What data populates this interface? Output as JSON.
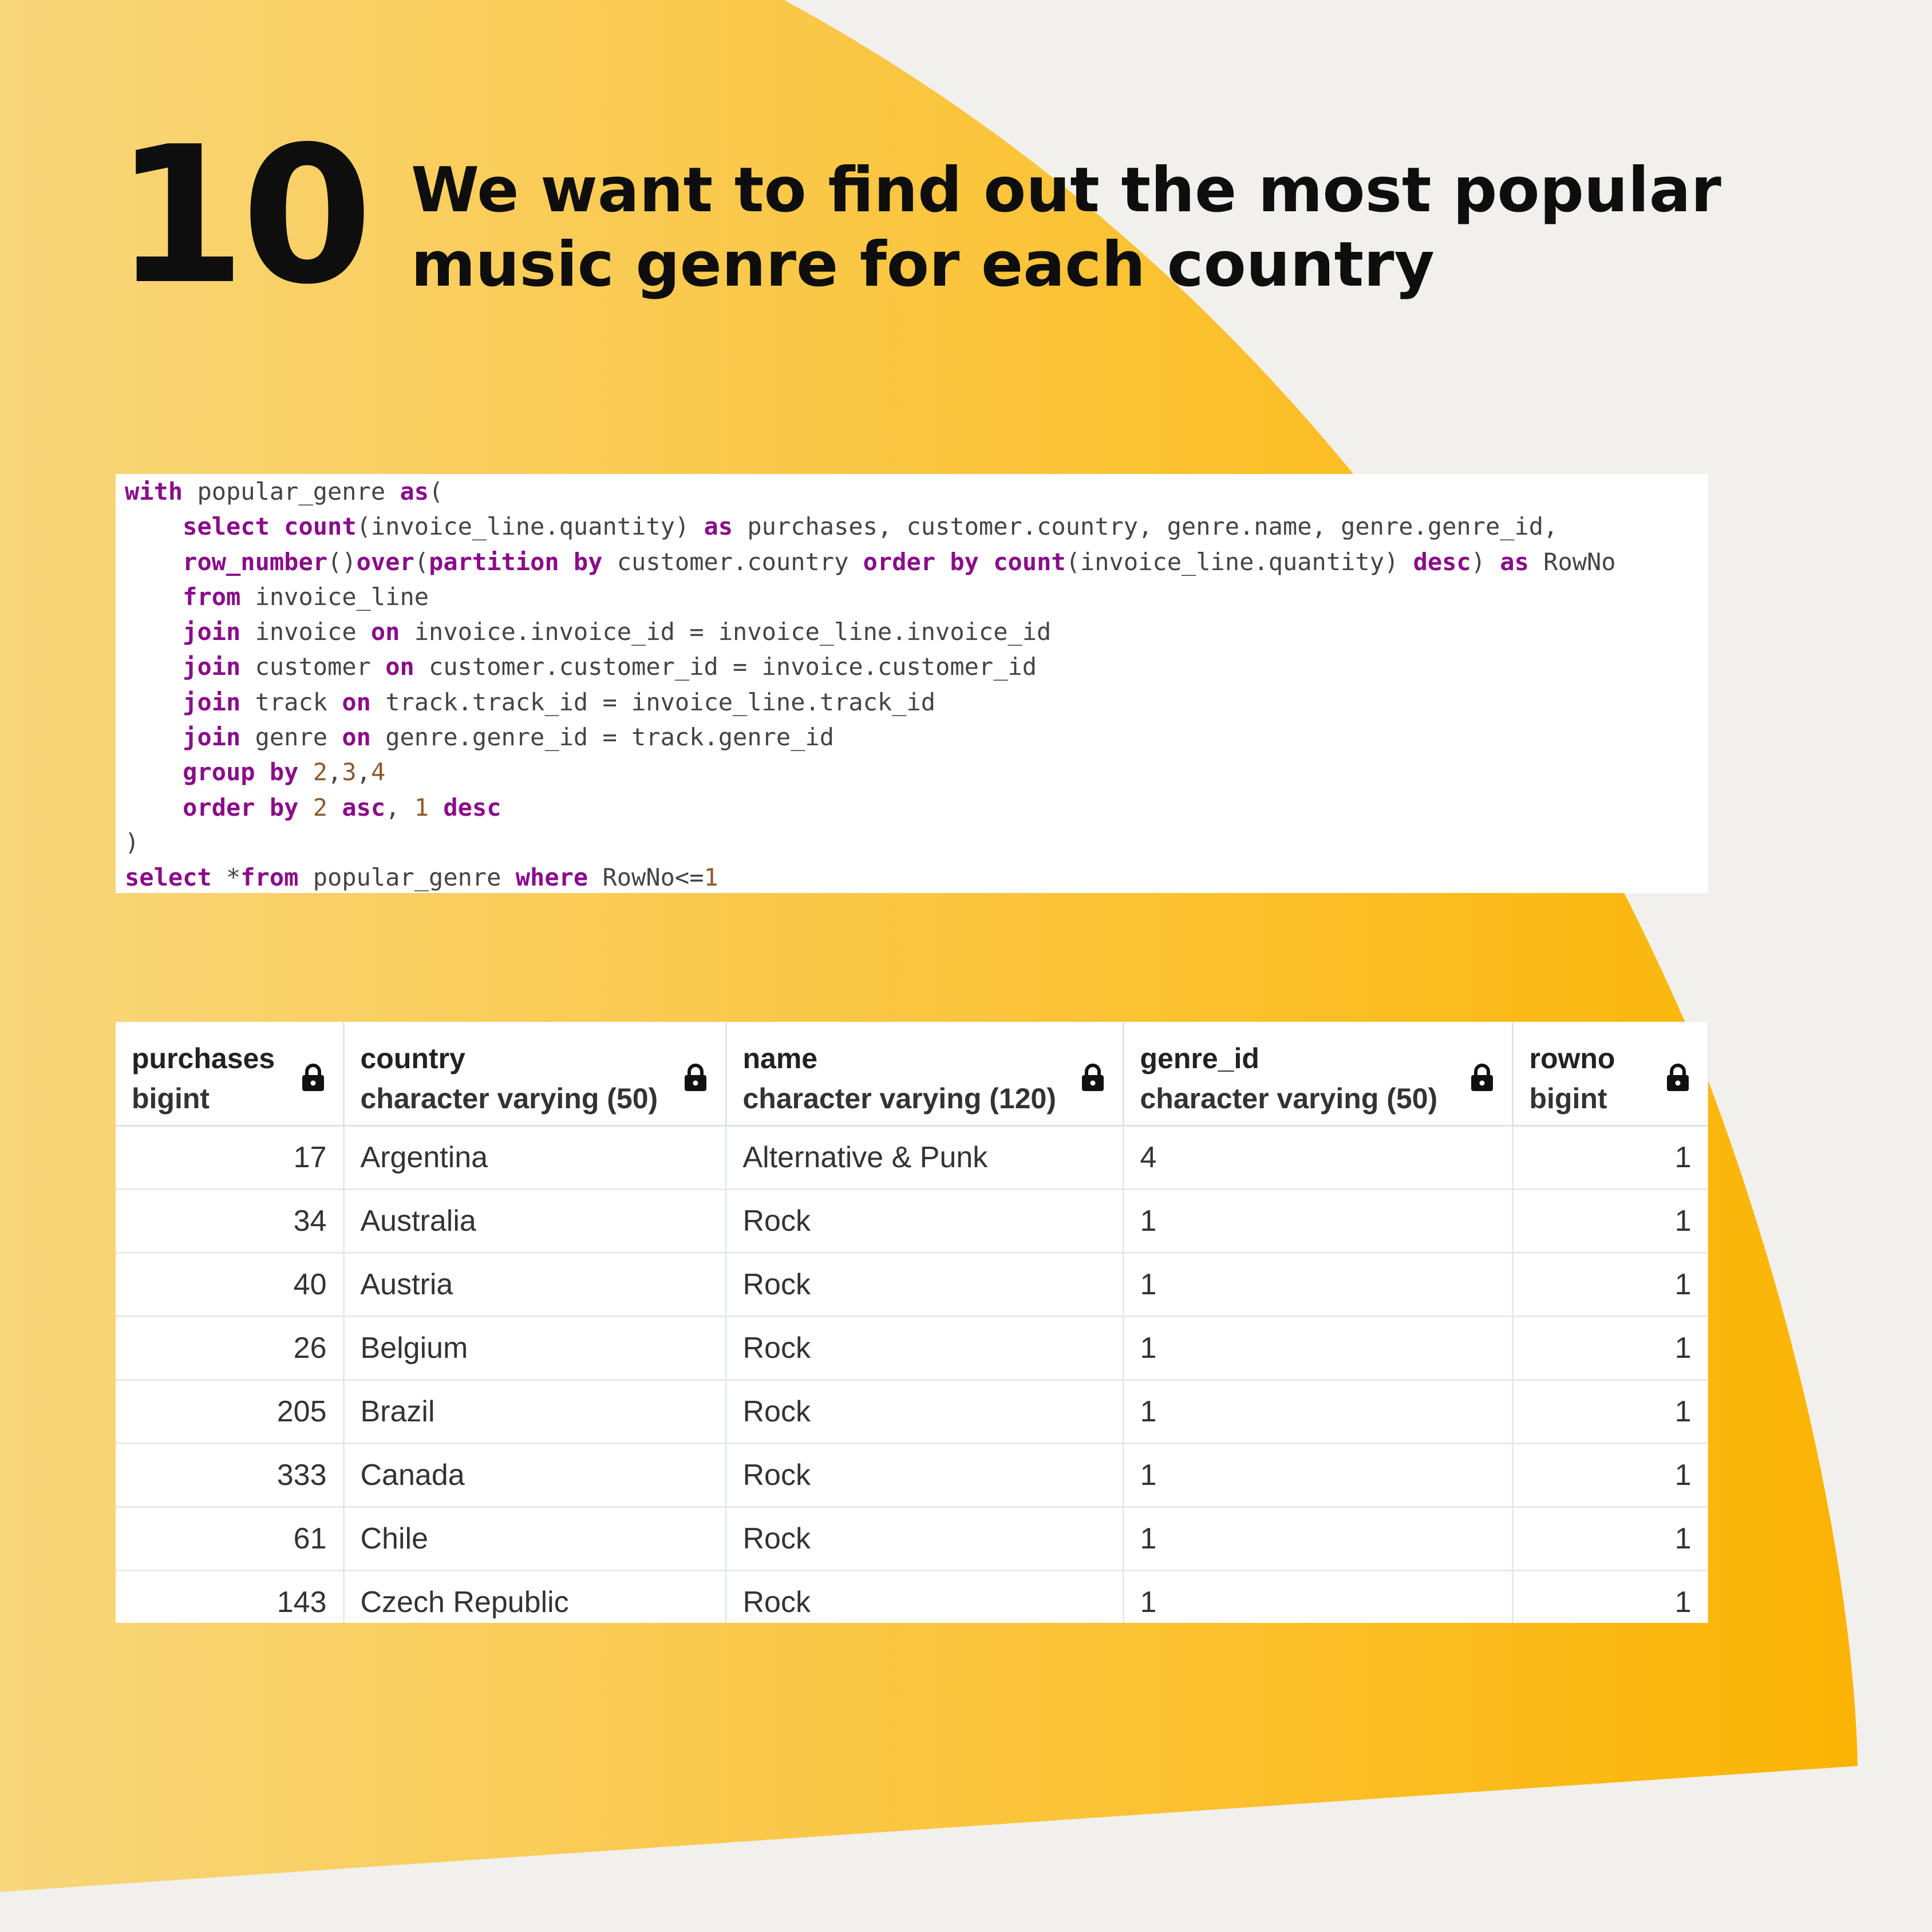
{
  "header": {
    "step_number": "10",
    "title_line1": "We want to find out the most popular",
    "title_line2": "music genre for each country"
  },
  "code": {
    "lines": [
      [
        {
          "t": "with",
          "c": "kw"
        },
        {
          "t": " popular_genre ",
          "c": "op"
        },
        {
          "t": "as",
          "c": "kw"
        },
        {
          "t": "(",
          "c": "op"
        }
      ],
      [
        {
          "t": "    ",
          "c": "op"
        },
        {
          "t": "select",
          "c": "kw"
        },
        {
          "t": " ",
          "c": "op"
        },
        {
          "t": "count",
          "c": "fn"
        },
        {
          "t": "(invoice_line.quantity) ",
          "c": "op"
        },
        {
          "t": "as",
          "c": "kw"
        },
        {
          "t": " purchases, customer.country, genre.name, genre.genre_id,",
          "c": "op"
        }
      ],
      [
        {
          "t": "    ",
          "c": "op"
        },
        {
          "t": "row_number",
          "c": "fn"
        },
        {
          "t": "()",
          "c": "op"
        },
        {
          "t": "over",
          "c": "kw"
        },
        {
          "t": "(",
          "c": "op"
        },
        {
          "t": "partition by",
          "c": "kw"
        },
        {
          "t": " customer.country ",
          "c": "op"
        },
        {
          "t": "order by",
          "c": "kw"
        },
        {
          "t": " ",
          "c": "op"
        },
        {
          "t": "count",
          "c": "fn"
        },
        {
          "t": "(invoice_line.quantity) ",
          "c": "op"
        },
        {
          "t": "desc",
          "c": "kw"
        },
        {
          "t": ") ",
          "c": "op"
        },
        {
          "t": "as",
          "c": "kw"
        },
        {
          "t": " RowNo",
          "c": "op"
        }
      ],
      [
        {
          "t": "    ",
          "c": "op"
        },
        {
          "t": "from",
          "c": "kw"
        },
        {
          "t": " invoice_line",
          "c": "op"
        }
      ],
      [
        {
          "t": "    ",
          "c": "op"
        },
        {
          "t": "join",
          "c": "kw"
        },
        {
          "t": " invoice ",
          "c": "op"
        },
        {
          "t": "on",
          "c": "kw"
        },
        {
          "t": " invoice.invoice_id = invoice_line.invoice_id",
          "c": "op"
        }
      ],
      [
        {
          "t": "    ",
          "c": "op"
        },
        {
          "t": "join",
          "c": "kw"
        },
        {
          "t": " customer ",
          "c": "op"
        },
        {
          "t": "on",
          "c": "kw"
        },
        {
          "t": " customer.customer_id = invoice.customer_id",
          "c": "op"
        }
      ],
      [
        {
          "t": "    ",
          "c": "op"
        },
        {
          "t": "join",
          "c": "kw"
        },
        {
          "t": " track ",
          "c": "op"
        },
        {
          "t": "on",
          "c": "kw"
        },
        {
          "t": " track.track_id = invoice_line.track_id",
          "c": "op"
        }
      ],
      [
        {
          "t": "    ",
          "c": "op"
        },
        {
          "t": "join",
          "c": "kw"
        },
        {
          "t": " genre ",
          "c": "op"
        },
        {
          "t": "on",
          "c": "kw"
        },
        {
          "t": " genre.genre_id = track.genre_id",
          "c": "op"
        }
      ],
      [
        {
          "t": "    ",
          "c": "op"
        },
        {
          "t": "group by",
          "c": "kw"
        },
        {
          "t": " ",
          "c": "op"
        },
        {
          "t": "2",
          "c": "num"
        },
        {
          "t": ",",
          "c": "op"
        },
        {
          "t": "3",
          "c": "num"
        },
        {
          "t": ",",
          "c": "op"
        },
        {
          "t": "4",
          "c": "num"
        }
      ],
      [
        {
          "t": "    ",
          "c": "op"
        },
        {
          "t": "order by",
          "c": "kw"
        },
        {
          "t": " ",
          "c": "op"
        },
        {
          "t": "2",
          "c": "num"
        },
        {
          "t": " ",
          "c": "op"
        },
        {
          "t": "asc",
          "c": "kw"
        },
        {
          "t": ", ",
          "c": "op"
        },
        {
          "t": "1",
          "c": "num"
        },
        {
          "t": " ",
          "c": "op"
        },
        {
          "t": "desc",
          "c": "kw"
        }
      ],
      [
        {
          "t": ")",
          "c": "op"
        }
      ],
      [
        {
          "t": "select",
          "c": "kw"
        },
        {
          "t": " *",
          "c": "op"
        },
        {
          "t": "from",
          "c": "kw"
        },
        {
          "t": " popular_genre ",
          "c": "op"
        },
        {
          "t": "where",
          "c": "kw"
        },
        {
          "t": " RowNo<=",
          "c": "op"
        },
        {
          "t": "1",
          "c": "num"
        }
      ]
    ]
  },
  "table": {
    "columns": [
      {
        "name": "purchases",
        "type": "bigint",
        "align": "right"
      },
      {
        "name": "country",
        "type": "character varying (50)",
        "align": "left"
      },
      {
        "name": "name",
        "type": "character varying (120)",
        "align": "left"
      },
      {
        "name": "genre_id",
        "type": "character varying (50)",
        "align": "left"
      },
      {
        "name": "rowno",
        "type": "bigint",
        "align": "right"
      }
    ],
    "rows": [
      [
        "17",
        "Argentina",
        "Alternative & Punk",
        "4",
        "1"
      ],
      [
        "34",
        "Australia",
        "Rock",
        "1",
        "1"
      ],
      [
        "40",
        "Austria",
        "Rock",
        "1",
        "1"
      ],
      [
        "26",
        "Belgium",
        "Rock",
        "1",
        "1"
      ],
      [
        "205",
        "Brazil",
        "Rock",
        "1",
        "1"
      ],
      [
        "333",
        "Canada",
        "Rock",
        "1",
        "1"
      ],
      [
        "61",
        "Chile",
        "Rock",
        "1",
        "1"
      ],
      [
        "143",
        "Czech Republic",
        "Rock",
        "1",
        "1"
      ]
    ]
  },
  "icons": {
    "column_lock": "lock-icon"
  },
  "colors": {
    "background": "#f1f0ec",
    "accent_light": "#f8d67a",
    "accent_dark": "#fbb404",
    "keyword": "#8a0c8a"
  }
}
